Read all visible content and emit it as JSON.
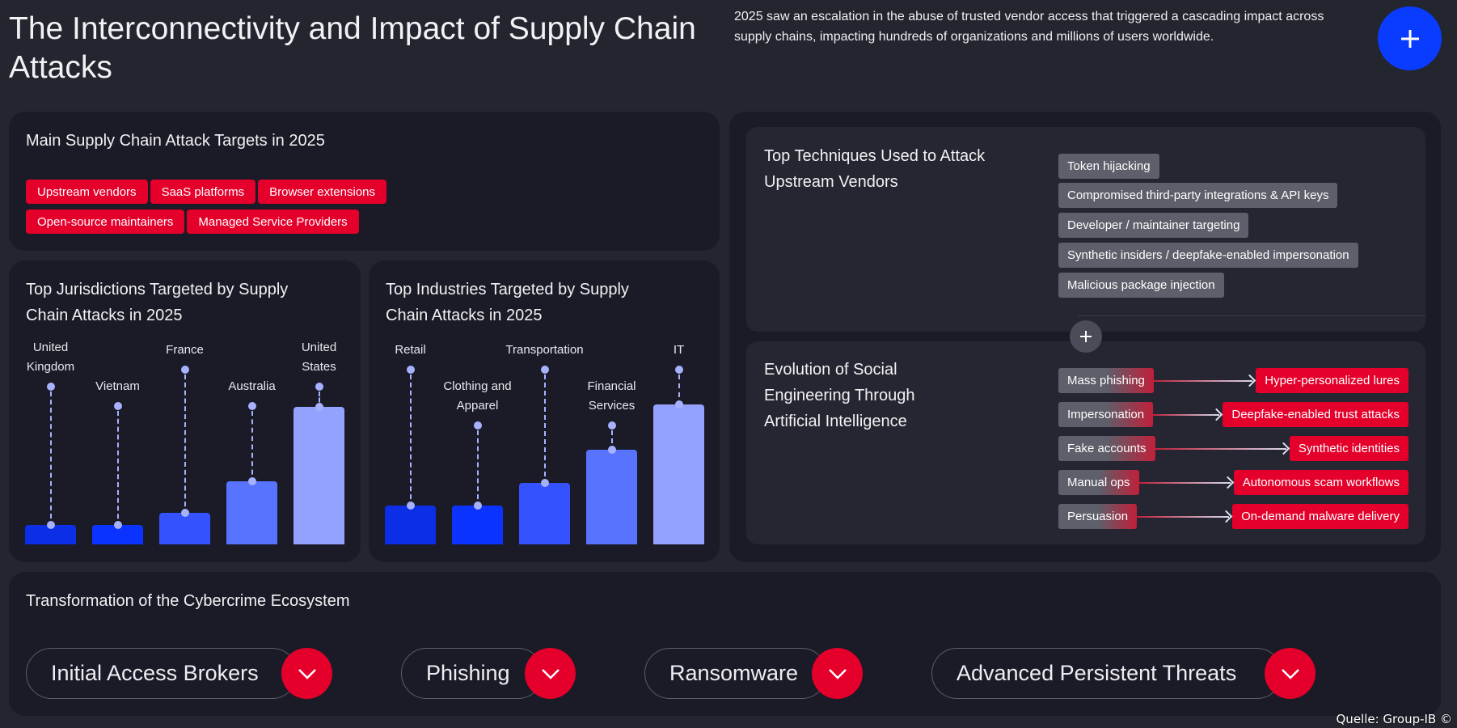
{
  "header": {
    "title": "The Interconnectivity and Impact of Supply Chain Attacks",
    "intro": "2025 saw an escalation in the abuse of trusted vendor access that triggered a cascading impact across supply chains, impacting hundreds of organizations and millions of users worldwide.",
    "plus_icon": "plus-icon"
  },
  "targets": {
    "title": "Main Supply Chain Attack Targets in 2025",
    "tags": [
      "Upstream vendors",
      "SaaS platforms",
      "Browser extensions",
      "Open-source maintainers",
      "Managed Service Providers"
    ]
  },
  "chart_data": [
    {
      "type": "bar",
      "title": "Top Jurisdictions Targeted by Supply Chain Attacks in 2025",
      "categories": [
        "United Kingdom",
        "Vietnam",
        "France",
        "Australia",
        "United States"
      ],
      "values": [
        14,
        14,
        23,
        46,
        100
      ],
      "colors": [
        "#0b2ee6",
        "#0a33ff",
        "#3552ff",
        "#5874ff",
        "#93a2ff"
      ]
    },
    {
      "type": "bar",
      "title": "Top Industries Targeted by Supply Chain Attacks in 2025",
      "categories": [
        "Retail",
        "Clothing and Apparel",
        "Transportation",
        "Financial Services",
        "IT"
      ],
      "values": [
        28,
        28,
        45,
        69,
        102
      ],
      "colors": [
        "#0b2ee6",
        "#0a33ff",
        "#3552ff",
        "#5874ff",
        "#93a2ff"
      ]
    }
  ],
  "techniques": {
    "title": "Top Techniques Used to Attack Upstream Vendors",
    "tags": [
      "Token hijacking",
      "Compromised third-party integrations & API keys",
      "Developer / maintainer targeting",
      "Synthetic insiders / deepfake-enabled impersonation",
      "Malicious package injection"
    ]
  },
  "evolution": {
    "title": "Evolution of Social Engineering Through Artificial Intelligence",
    "rows": [
      {
        "from": "Mass phishing",
        "to": "Hyper-personalized lures"
      },
      {
        "from": "Impersonation",
        "to": "Deepfake-enabled trust attacks"
      },
      {
        "from": "Fake accounts",
        "to": "Synthetic identities"
      },
      {
        "from": "Manual ops",
        "to": "Autonomous scam workflows"
      },
      {
        "from": "Persuasion",
        "to": "On-demand malware delivery"
      }
    ]
  },
  "ecosystem": {
    "title": "Transformation of the Cybercrime Ecosystem",
    "items": [
      "Initial Access Brokers",
      "Phishing",
      "Ransomware",
      "Advanced Persistent Threats"
    ]
  },
  "source": "Quelle: Group-IB ©"
}
